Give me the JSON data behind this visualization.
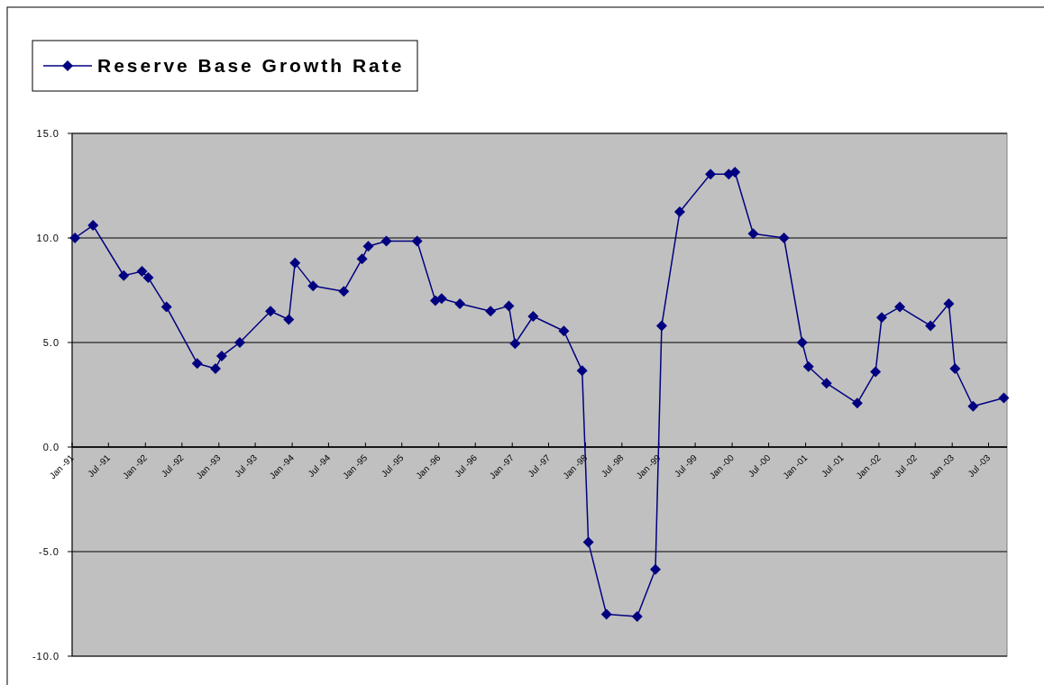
{
  "chart_data": {
    "type": "line",
    "legend": "top left",
    "grid": "y",
    "marker": "diamond",
    "line_style": "solid",
    "xlim": [
      "1991-01-01",
      "2003-10-01"
    ],
    "xticks": [
      {
        "value": "1991-01-01",
        "label": "Jan -91"
      },
      {
        "value": "1991-07-01",
        "label": "Jul -91"
      },
      {
        "value": "1992-01-01",
        "label": "Jan -92"
      },
      {
        "value": "1992-07-01",
        "label": "Jul -92"
      },
      {
        "value": "1993-01-01",
        "label": "Jan -93"
      },
      {
        "value": "1993-07-01",
        "label": "Jul -93"
      },
      {
        "value": "1994-01-01",
        "label": "Jan -94"
      },
      {
        "value": "1994-07-01",
        "label": "Jul -94"
      },
      {
        "value": "1995-01-01",
        "label": "Jan -95"
      },
      {
        "value": "1995-07-01",
        "label": "Jul -95"
      },
      {
        "value": "1996-01-01",
        "label": "Jan -96"
      },
      {
        "value": "1996-07-01",
        "label": "Jul -96"
      },
      {
        "value": "1997-01-01",
        "label": "Jan -97"
      },
      {
        "value": "1997-07-01",
        "label": "Jul -97"
      },
      {
        "value": "1998-01-01",
        "label": "Jan -98"
      },
      {
        "value": "1998-07-01",
        "label": "Jul -98"
      },
      {
        "value": "1999-01-01",
        "label": "Jan -99"
      },
      {
        "value": "1999-07-01",
        "label": "Jul -99"
      },
      {
        "value": "2000-01-01",
        "label": "Jan -00"
      },
      {
        "value": "2000-07-01",
        "label": "Jul -00"
      },
      {
        "value": "2001-01-01",
        "label": "Jan -01"
      },
      {
        "value": "2001-07-01",
        "label": "Jul -01"
      },
      {
        "value": "2002-01-01",
        "label": "Jan -02"
      },
      {
        "value": "2002-07-01",
        "label": "Jul -02"
      },
      {
        "value": "2003-01-01",
        "label": "Jan -03"
      },
      {
        "value": "2003-07-01",
        "label": "Jul -03"
      }
    ],
    "ylim": [
      -10,
      15
    ],
    "yticks": [
      {
        "value": -10,
        "label": "-10.0"
      },
      {
        "value": -5,
        "label": "-5.0"
      },
      {
        "value": 0,
        "label": "0.0"
      },
      {
        "value": 5,
        "label": "5.0"
      },
      {
        "value": 10,
        "label": "10.0"
      },
      {
        "value": 15,
        "label": "15.0"
      }
    ],
    "x": [
      "1991-01-15",
      "1991-04-15",
      "1991-09-15",
      "1991-12-15",
      "1992-01-15",
      "1992-04-15",
      "1992-09-15",
      "1992-12-15",
      "1993-01-15",
      "1993-04-15",
      "1993-09-15",
      "1993-12-15",
      "1994-01-15",
      "1994-04-15",
      "1994-09-15",
      "1994-12-15",
      "1995-01-15",
      "1995-04-15",
      "1995-09-15",
      "1995-12-15",
      "1996-01-15",
      "1996-04-15",
      "1996-09-15",
      "1996-12-15",
      "1997-01-15",
      "1997-04-15",
      "1997-09-15",
      "1997-12-15",
      "1998-01-15",
      "1998-04-15",
      "1998-09-15",
      "1998-12-15",
      "1999-01-15",
      "1999-04-15",
      "1999-09-15",
      "1999-12-15",
      "2000-01-15",
      "2000-04-15",
      "2000-09-15",
      "2000-12-15",
      "2001-01-15",
      "2001-04-15",
      "2001-09-15",
      "2001-12-15",
      "2002-01-15",
      "2002-04-15",
      "2002-09-15",
      "2002-12-15",
      "2003-01-15",
      "2003-04-15",
      "2003-09-15"
    ],
    "series": [
      {
        "name": "Reserve Base Growth Rate",
        "color": "#000080",
        "values": [
          10.0,
          10.6,
          8.2,
          8.4,
          8.1,
          6.7,
          4.0,
          3.75,
          4.35,
          5.0,
          6.5,
          6.1,
          8.8,
          7.7,
          7.45,
          9.0,
          9.6,
          9.85,
          9.85,
          7.0,
          7.1,
          6.85,
          6.5,
          6.75,
          4.95,
          6.25,
          5.55,
          3.65,
          -4.55,
          -8.0,
          -8.1,
          -5.85,
          5.8,
          11.25,
          13.05,
          13.05,
          13.15,
          10.2,
          10.0,
          5.0,
          3.85,
          3.05,
          2.1,
          3.6,
          6.2,
          6.7,
          5.8,
          6.85,
          3.75,
          1.95,
          2.35
        ]
      }
    ]
  }
}
